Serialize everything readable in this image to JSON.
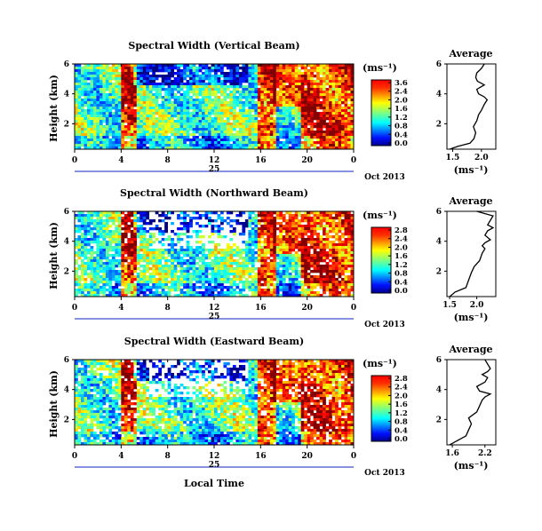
{
  "figure": {
    "xlabel": "Local Time",
    "date_label": "Oct 2013",
    "day_label": "25",
    "colorbar_unit": "(ms⁻¹)",
    "average_title": "Average",
    "average_unit": "(ms⁻¹)"
  },
  "chart_data": [
    {
      "type": "heatmap",
      "title": "Spectral Width (Vertical Beam)",
      "ylabel": "Height (km)",
      "xlabel": "Local Time",
      "x_ticks": [
        "0",
        "4",
        "8",
        "12",
        "16",
        "20",
        "0"
      ],
      "y_ticks": [
        "6",
        "4",
        "2"
      ],
      "xlim": [
        0,
        24
      ],
      "ylim": [
        0.3,
        6
      ],
      "colorbar": {
        "ticks": [
          "3.6",
          "2.4",
          "2.0",
          "1.6",
          "1.2",
          "0.8",
          "0.4",
          "0.0"
        ],
        "colormap": "jet"
      },
      "profile": {
        "title": "Average",
        "xlabel": "(ms⁻¹)",
        "x_ticks": [
          "1.5",
          "2.0"
        ],
        "y_ticks": [
          "6",
          "4",
          "2"
        ],
        "xlim": [
          1.4,
          2.25
        ],
        "ylim": [
          0.3,
          6
        ],
        "values": [
          [
            1.45,
            0.3
          ],
          [
            1.6,
            0.5
          ],
          [
            1.8,
            0.7
          ],
          [
            1.87,
            1.0
          ],
          [
            1.9,
            1.4
          ],
          [
            1.86,
            1.8
          ],
          [
            1.92,
            2.2
          ],
          [
            1.95,
            2.6
          ],
          [
            2.0,
            2.9
          ],
          [
            2.05,
            3.3
          ],
          [
            2.1,
            3.6
          ],
          [
            2.05,
            3.8
          ],
          [
            1.95,
            4.0
          ],
          [
            1.92,
            4.3
          ],
          [
            2.05,
            4.6
          ],
          [
            1.93,
            4.85
          ],
          [
            1.9,
            5.1
          ],
          [
            1.92,
            5.4
          ],
          [
            2.0,
            5.7
          ],
          [
            2.05,
            6.0
          ]
        ]
      }
    },
    {
      "type": "heatmap",
      "title": "Spectral Width (Northward Beam)",
      "ylabel": "Height (km)",
      "xlabel": "Local Time",
      "x_ticks": [
        "0",
        "4",
        "8",
        "12",
        "16",
        "20",
        "0"
      ],
      "y_ticks": [
        "6",
        "4",
        "2"
      ],
      "xlim": [
        0,
        24
      ],
      "ylim": [
        0.3,
        6
      ],
      "colorbar": {
        "ticks": [
          "2.8",
          "2.4",
          "2.0",
          "1.6",
          "1.2",
          "0.8",
          "0.4",
          "0.0"
        ],
        "colormap": "jet"
      },
      "profile": {
        "title": "Average",
        "xlabel": "(ms⁻¹)",
        "x_ticks": [
          "1.5",
          "2.0"
        ],
        "y_ticks": [
          "6",
          "4",
          "2"
        ],
        "xlim": [
          1.45,
          2.35
        ],
        "ylim": [
          0.3,
          6
        ],
        "values": [
          [
            1.5,
            0.3
          ],
          [
            1.6,
            0.6
          ],
          [
            1.8,
            0.9
          ],
          [
            1.85,
            1.4
          ],
          [
            1.9,
            1.9
          ],
          [
            1.95,
            2.3
          ],
          [
            2.05,
            2.7
          ],
          [
            2.1,
            3.2
          ],
          [
            2.15,
            3.5
          ],
          [
            2.1,
            3.7
          ],
          [
            2.15,
            3.9
          ],
          [
            2.25,
            4.1
          ],
          [
            2.15,
            4.4
          ],
          [
            2.2,
            4.7
          ],
          [
            2.3,
            4.9
          ],
          [
            2.2,
            5.1
          ],
          [
            2.25,
            5.4
          ],
          [
            2.3,
            5.7
          ],
          [
            2.0,
            6.0
          ]
        ]
      }
    },
    {
      "type": "heatmap",
      "title": "Spectral Width (Eastward Beam)",
      "ylabel": "Height (km)",
      "xlabel": "Local Time",
      "x_ticks": [
        "0",
        "4",
        "8",
        "12",
        "16",
        "20",
        "0"
      ],
      "y_ticks": [
        "6",
        "4",
        "2"
      ],
      "xlim": [
        0,
        24
      ],
      "ylim": [
        0.3,
        6
      ],
      "colorbar": {
        "ticks": [
          "2.8",
          "2.4",
          "2.0",
          "1.6",
          "1.2",
          "0.8",
          "0.4",
          "0.0"
        ],
        "colormap": "jet"
      },
      "profile": {
        "title": "Average",
        "xlabel": "(ms⁻¹)",
        "x_ticks": [
          "1.6",
          "2.2"
        ],
        "y_ticks": [
          "6",
          "4",
          "2"
        ],
        "xlim": [
          1.5,
          2.4
        ],
        "ylim": [
          0.3,
          6
        ],
        "values": [
          [
            1.55,
            0.3
          ],
          [
            1.7,
            0.6
          ],
          [
            1.85,
            0.9
          ],
          [
            1.9,
            1.3
          ],
          [
            1.95,
            1.7
          ],
          [
            1.9,
            2.1
          ],
          [
            2.05,
            2.5
          ],
          [
            2.1,
            2.9
          ],
          [
            2.15,
            3.3
          ],
          [
            2.2,
            3.5
          ],
          [
            2.3,
            3.7
          ],
          [
            2.1,
            3.9
          ],
          [
            2.05,
            4.2
          ],
          [
            2.2,
            4.5
          ],
          [
            2.25,
            4.8
          ],
          [
            2.15,
            5.0
          ],
          [
            2.25,
            5.2
          ],
          [
            2.3,
            5.4
          ],
          [
            2.25,
            5.7
          ],
          [
            2.2,
            6.0
          ]
        ]
      }
    }
  ]
}
